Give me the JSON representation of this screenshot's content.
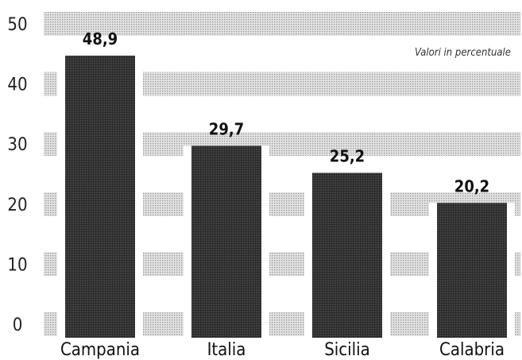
{
  "chart_data": {
    "type": "bar",
    "categories": [
      "Campania",
      "Italia",
      "Sicilia",
      "Calabria"
    ],
    "values": [
      48.9,
      29.7,
      25.2,
      20.2
    ],
    "value_labels": [
      "48,9",
      "29,7",
      "25,2",
      "20,2"
    ],
    "title": "",
    "xlabel": "",
    "ylabel": "",
    "ylim": [
      0,
      50
    ],
    "yticks": [
      0,
      10,
      20,
      30,
      40,
      50
    ],
    "note": "Valori in percentuale",
    "grid": true,
    "colors": {
      "bar": "#2e2e2e",
      "band": "#cfcfcf",
      "band_dot": "#9a9a9a"
    }
  }
}
